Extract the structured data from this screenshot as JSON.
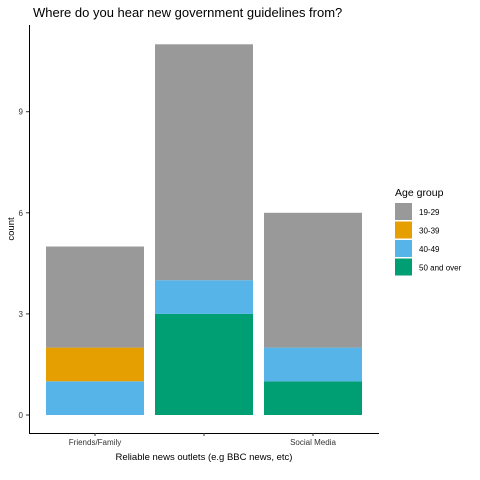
{
  "chart_data": {
    "type": "bar",
    "stacked": true,
    "title": "Where do you hear new government guidelines from?",
    "xlabel": "Reliable news outlets (e.g BBC news, etc)",
    "ylabel": "count",
    "categories": [
      "Friends/Family",
      "",
      "Social Media"
    ],
    "yticks": [
      0,
      3,
      6,
      9
    ],
    "ylim": [
      0,
      11
    ],
    "grid": false,
    "legend": {
      "title": "Age group",
      "position": "right",
      "entries": [
        "19-29",
        "30-39",
        "40-49",
        "50 and over"
      ]
    },
    "series": [
      {
        "name": "19-29",
        "color": "#999999",
        "values": [
          3,
          7,
          4
        ]
      },
      {
        "name": "30-39",
        "color": "#E69F00",
        "values": [
          1,
          0,
          0
        ]
      },
      {
        "name": "40-49",
        "color": "#56B4E9",
        "values": [
          1,
          1,
          1
        ]
      },
      {
        "name": "50 and over",
        "color": "#009E73",
        "values": [
          0,
          3,
          1
        ]
      }
    ]
  }
}
